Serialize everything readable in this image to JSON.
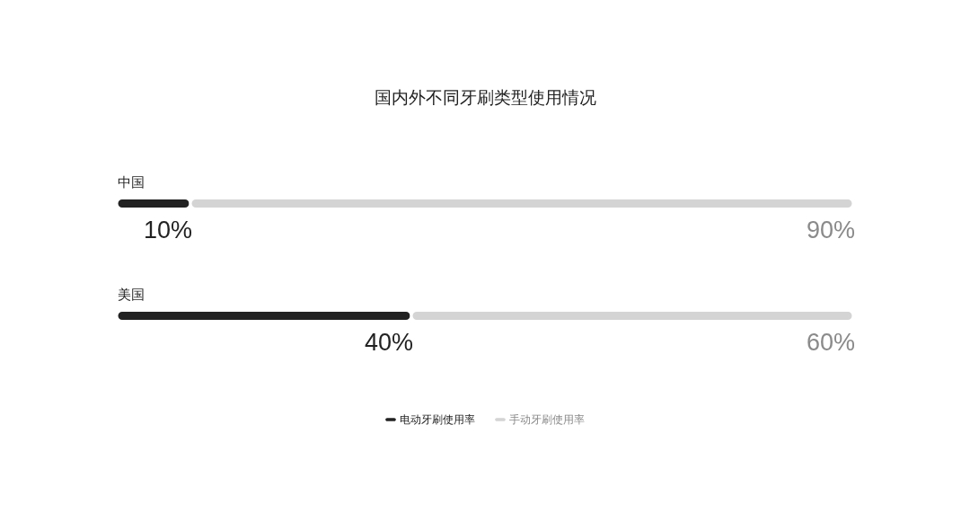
{
  "chart_data": {
    "type": "bar",
    "title": "国内外不同牙刷类型使用情况",
    "categories": [
      "中国",
      "美国"
    ],
    "orientation": "horizontal",
    "stacked": true,
    "xlim": [
      0,
      100
    ],
    "tick_labels": "y",
    "legend": "bottom",
    "series": [
      {
        "name": "电动牙刷使用率",
        "color": "#222222",
        "values": [
          10,
          40
        ],
        "value_labels": [
          "10%",
          "40%"
        ]
      },
      {
        "name": "手动牙刷使用率",
        "color": "#d4d4d4",
        "values": [
          90,
          60
        ],
        "value_labels": [
          "90%",
          "60%"
        ]
      }
    ]
  }
}
